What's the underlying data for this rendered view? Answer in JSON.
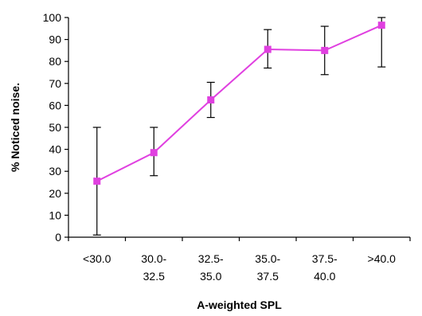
{
  "chart_data": {
    "type": "line",
    "title": "",
    "xlabel": "A-weighted SPL",
    "ylabel": "% Noticed noise.",
    "ylim": [
      0,
      100
    ],
    "yticks": [
      0,
      10,
      20,
      30,
      40,
      50,
      60,
      70,
      80,
      90,
      100
    ],
    "categories": [
      [
        "<30.0"
      ],
      [
        "30.0-",
        "32.5"
      ],
      [
        "32.5-",
        "35.0"
      ],
      [
        "35.0-",
        "37.5"
      ],
      [
        "37.5-",
        "40.0"
      ],
      [
        ">40.0"
      ]
    ],
    "series": [
      {
        "values": [
          25.5,
          38.5,
          62.5,
          85.5,
          85.0,
          96.5
        ],
        "error_lower": [
          1,
          28,
          54.5,
          77,
          74,
          77.5
        ],
        "error_upper": [
          50,
          50,
          70.5,
          94.5,
          96,
          100
        ],
        "color": "#e040e0",
        "marker": "square"
      }
    ],
    "axis_color": "#000000",
    "error_bar_color": "#000000",
    "grid": false,
    "legend": false
  }
}
